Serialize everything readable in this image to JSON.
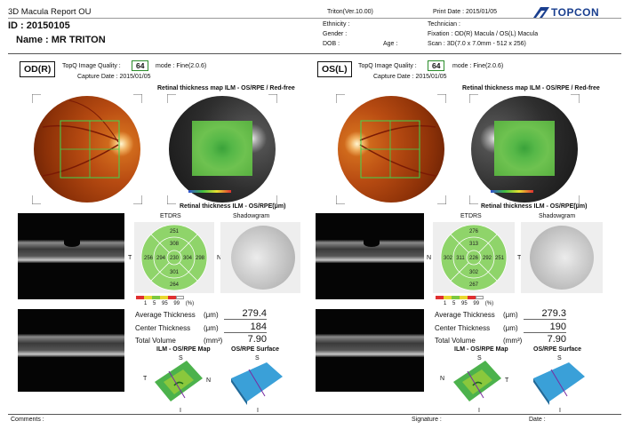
{
  "header": {
    "title": "3D Macula Report OU",
    "id": "ID : 20150105",
    "name": "Name : MR    TRITON",
    "software": "Triton(Ver.10.00)",
    "print_date": "Print Date : 2015/01/05",
    "brand": "TOPCON",
    "ethnicity": "Ethnicity :",
    "gender": "Gender :",
    "dob": "DOB :",
    "age": "Age :",
    "technician": "Technician :",
    "fixation": "Fixation : OD(R) Macula / OS(L) Macula",
    "scan": "Scan : 3D(7.0 x 7.0mm - 512 x 256)"
  },
  "right": {
    "eye": "OD(R)",
    "quality_label": "TopQ Image Quality :",
    "quality": "64",
    "mode": "mode : Fine(2.0.6)",
    "capture": "Capture Date : 2015/01/05",
    "map_title": "Retinal thickness map ILM - OS/RPE / Red-free",
    "thick_title": "Retinal thickness ILM - OS/RPE(μm)",
    "etdrs_label": "ETDRS",
    "shadow_label": "Shadowgram",
    "etdrs": [
      "251",
      "308",
      "256",
      "294",
      "230",
      "304",
      "298",
      "301",
      "264"
    ],
    "dir_t": "T",
    "dir_n": "N",
    "avg_label": "Average Thickness",
    "avg_unit": "(μm)",
    "avg": "279.4",
    "center_label": "Center Thickness",
    "center_unit": "(μm)",
    "center": "184",
    "vol_label": "Total Volume",
    "vol_unit": "(mm³)",
    "vol": "7.90",
    "ilm_label": "ILM - OS/RPE Map",
    "surf_label": "OS/RPE Surface",
    "s": "S",
    "i": "I",
    "t": "T",
    "n": "N"
  },
  "left": {
    "eye": "OS(L)",
    "quality_label": "TopQ Image Quality :",
    "quality": "64",
    "mode": "mode : Fine(2.0.6)",
    "capture": "Capture Date : 2015/01/05",
    "map_title": "Retinal thickness map ILM - OS/RPE / Red-free",
    "thick_title": "Retinal thickness ILM - OS/RPE(μm)",
    "etdrs_label": "ETDRS",
    "shadow_label": "Shadowgram",
    "etdrs": [
      "276",
      "313",
      "302",
      "311",
      "226",
      "292",
      "251",
      "302",
      "267"
    ],
    "dir_t": "T",
    "dir_n": "N",
    "avg_label": "Average Thickness",
    "avg_unit": "(μm)",
    "avg": "279.3",
    "center_label": "Center Thickness",
    "center_unit": "(μm)",
    "center": "190",
    "vol_label": "Total Volume",
    "vol_unit": "(mm³)",
    "vol": "7.90",
    "ilm_label": "ILM - OS/RPE Map",
    "surf_label": "OS/RPE Surface",
    "s": "S",
    "i": "I",
    "t": "T",
    "n": "N"
  },
  "scale": {
    "ticks": [
      "1",
      "5",
      "95",
      "99",
      "(%)"
    ],
    "colors": [
      "#e03030",
      "#e8d830",
      "#7cc840",
      "#e8d830",
      "#e03030",
      "#f4f4f4"
    ]
  },
  "footer": {
    "comments": "Comments :",
    "signature": "Signature :",
    "date": "Date :"
  },
  "colors": {
    "accent_green": "#2a8c2a",
    "brand_blue": "#1a3f8f",
    "etdrs_green": "#8fd46a"
  }
}
